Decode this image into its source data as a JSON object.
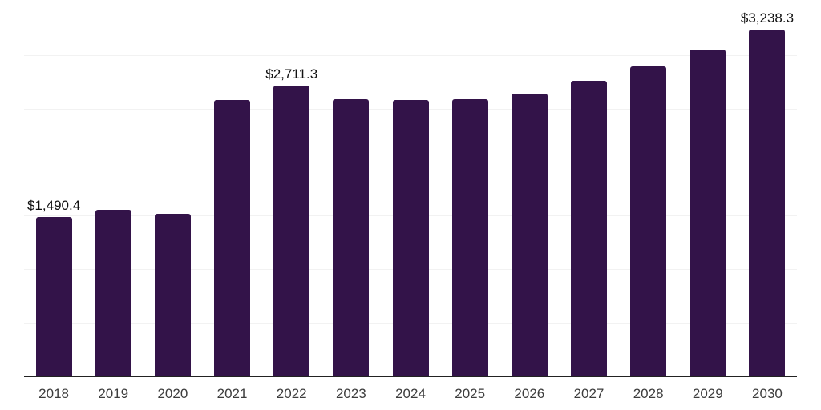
{
  "chart_data": {
    "type": "bar",
    "title": "",
    "xlabel": "",
    "ylabel": "",
    "categories": [
      "2018",
      "2019",
      "2020",
      "2021",
      "2022",
      "2023",
      "2024",
      "2025",
      "2026",
      "2027",
      "2028",
      "2029",
      "2030"
    ],
    "values": [
      1490.4,
      1557,
      1520,
      2580,
      2711.3,
      2587,
      2578,
      2590,
      2643,
      2757,
      2893,
      3055,
      3238.3
    ],
    "data_labels": [
      {
        "index": 0,
        "text": "$1,490.4"
      },
      {
        "index": 4,
        "text": "$2,711.3"
      },
      {
        "index": 12,
        "text": "$3,238.3"
      }
    ],
    "ylim": [
      0,
      3500
    ],
    "grid_interval": 500,
    "grid": true,
    "legend": false,
    "y_tick_labels_visible": false,
    "colors": {
      "bar": "#331349",
      "gridline": "#f2f2f2",
      "axis": "#222222",
      "data_label": "#111111",
      "tick_label": "#3d3d3d",
      "background": "#ffffff"
    }
  }
}
